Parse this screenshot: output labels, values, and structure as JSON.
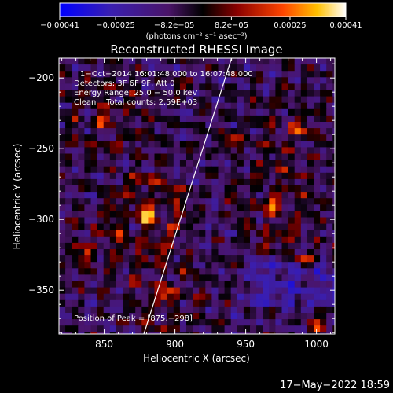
{
  "chart_data": {
    "type": "heatmap",
    "title": "Reconstructed RHESSI Image",
    "xlabel": "Heliocentric X (arcsec)",
    "ylabel": "Heliocentric Y (arcsec)",
    "xlim": [
      818,
      1013
    ],
    "ylim": [
      -381,
      -186
    ],
    "xticks": [
      850,
      900,
      950,
      1000
    ],
    "xtick_labels": [
      "850",
      "900",
      "950",
      "1000"
    ],
    "yticks": [
      -200,
      -250,
      -300,
      -350
    ],
    "ytick_labels": [
      "−200",
      "−250",
      "−300",
      "−350"
    ],
    "colorbar": {
      "range": [
        -0.00041,
        0.00041
      ],
      "tick_values": [
        -0.00041,
        -0.00025,
        -8.2e-05,
        8.2e-05,
        0.00025,
        0.00041
      ],
      "tick_labels": [
        "−0.00041",
        "−0.00025",
        "−8.2e−05",
        "8.2e−05",
        "0.00025",
        "0.00041"
      ],
      "units_label": "(photons cm⁻² s⁻¹ asec⁻²)"
    },
    "annotations": [
      "1−Oct−2014 16:01:48.000 to 16:07:48.000",
      "Detectors: 3F 6F 9F, Att 0",
      "Energy Range: 25.0 − 50.0 keV",
      "Clean    Total counts: 2.59E+03",
      "Position of Peak = [875,−298]"
    ],
    "limb_line": {
      "x": [
        878,
        940
      ],
      "y": [
        -381,
        -186
      ]
    },
    "peak": {
      "x": 875,
      "y": -298
    },
    "sources": [
      {
        "x": 880,
        "y": -296,
        "amp": 0.00041,
        "sigma": 17
      },
      {
        "x": 893,
        "y": -353,
        "amp": 0.0003,
        "sigma": 15
      },
      {
        "x": 850,
        "y": -228,
        "amp": 0.00027,
        "sigma": 16
      },
      {
        "x": 968,
        "y": -290,
        "amp": 0.00031,
        "sigma": 16
      },
      {
        "x": 988,
        "y": -235,
        "amp": 0.00026,
        "sigma": 15
      },
      {
        "x": 940,
        "y": -244,
        "amp": 0.00022,
        "sigma": 10
      },
      {
        "x": 990,
        "y": -330,
        "amp": 0.00019,
        "sigma": 12
      },
      {
        "x": 835,
        "y": -325,
        "amp": 0.0002,
        "sigma": 14
      },
      {
        "x": 905,
        "y": -205,
        "amp": 0.0001,
        "sigma": 12
      },
      {
        "x": 1000,
        "y": -375,
        "amp": 0.0002,
        "sigma": 9
      }
    ]
  },
  "footer": {
    "date": "17−May−2022 18:59"
  }
}
